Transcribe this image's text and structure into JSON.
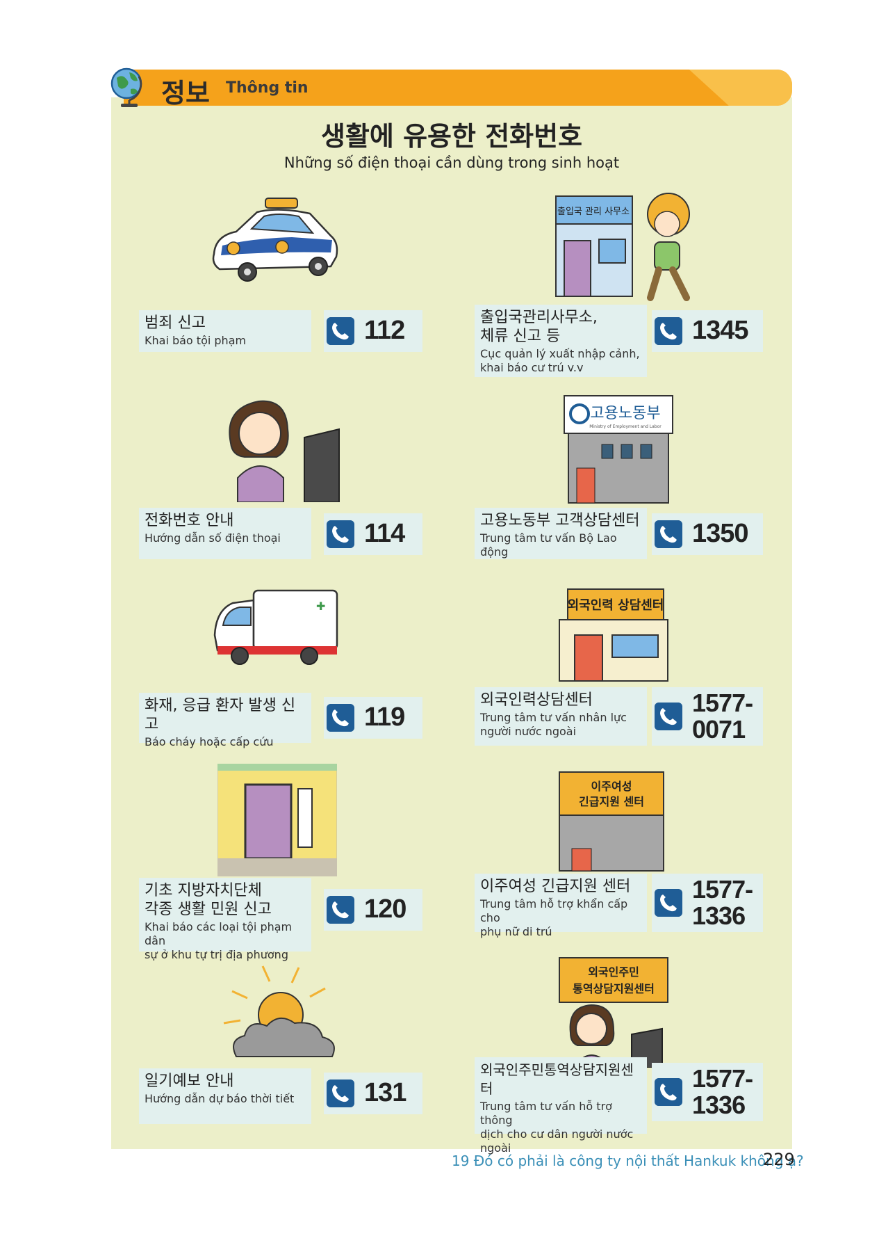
{
  "header": {
    "title_ko": "정보",
    "title_vi": "Thông tin"
  },
  "main": {
    "title_ko": "생활에 유용한 전화번호",
    "title_vi": "Những số điện thoại cần dùng trong sinh hoạt"
  },
  "items": [
    {
      "ko": "범죄 신고",
      "vi": "Khai báo tội phạm",
      "number": "112"
    },
    {
      "ko": "출입국관리사무소,\n체류 신고 등",
      "vi": "Cục quản lý xuất nhập cảnh,\nkhai báo cư trú v.v",
      "number": "1345"
    },
    {
      "ko": "전화번호 안내",
      "vi": "Hướng dẫn số điện thoại",
      "number": "114"
    },
    {
      "ko": "고용노동부 고객상담센터",
      "vi": "Trung tâm tư vấn Bộ Lao động",
      "number": "1350"
    },
    {
      "ko": "화재, 응급 환자 발생 신고",
      "vi": "Báo cháy hoặc cấp cứu",
      "number": "119"
    },
    {
      "ko": "외국인력상담센터",
      "vi": "Trung tâm tư vấn nhân lực\nngười nước ngoài",
      "number": "1577-\n0071"
    },
    {
      "ko": "기초 지방자치단체\n각종 생활 민원 신고",
      "vi": "Khai báo các loại tội phạm dân\nsự ở khu tự trị địa phương",
      "number": "120"
    },
    {
      "ko": "이주여성 긴급지원 센터",
      "vi": "Trung tâm hỗ trợ khẩn cấp cho\nphụ nữ di trú",
      "number": "1577-\n1336"
    },
    {
      "ko": "일기예보 안내",
      "vi": "Hướng dẫn dự báo thời tiết",
      "number": "131"
    },
    {
      "ko": "외국인주민통역상담지원센터",
      "vi": "Trung tâm tư vấn hỗ trợ thông\ndịch cho cư dân người nước\nngoài",
      "number": "1577-\n1336"
    }
  ],
  "signs": {
    "immigration": "출입국 관리 사무소",
    "labor": "고용노동부",
    "labor_sub": "Ministry of Employment and Labor",
    "foreign_workforce": "외국인력 상담센터",
    "local_gov": "기초지방자치단체",
    "migrant_women_1": "이주여성",
    "migrant_women_2": "긴급지원 센터",
    "foreign_residents_1": "외국인주민",
    "foreign_residents_2": "통역상담지원센터"
  },
  "footer": {
    "text": "19 Đó có phải là công ty nội thất Hankuk không ạ?",
    "page": "229"
  },
  "colors": {
    "panel": "#ecefc9",
    "header": "#f5a21b",
    "card": "#e2f0ee",
    "phone_icon": "#1f5d96",
    "footer_text": "#3a8fb7"
  },
  "icons": [
    "globe-icon",
    "phone-icon"
  ]
}
